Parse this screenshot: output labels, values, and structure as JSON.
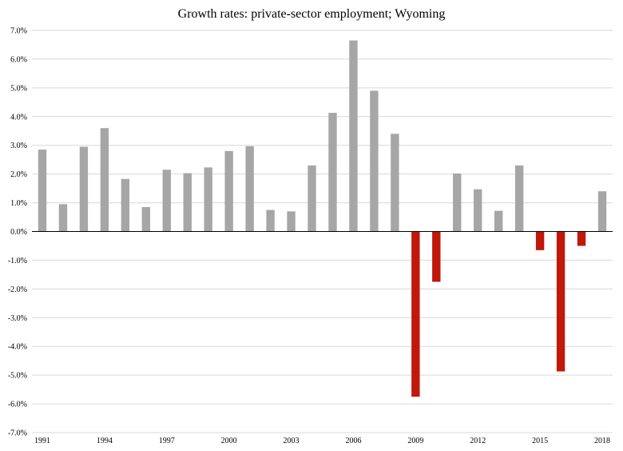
{
  "chart_data": {
    "type": "bar",
    "title": "Growth rates: private-sector employment; Wyoming",
    "xlabel": "",
    "ylabel": "",
    "ylim": [
      -7,
      7
    ],
    "y_tick_step": 1,
    "y_tick_format": "percent_1dp",
    "grid": true,
    "legend": "none",
    "colors": {
      "positive": "#a6a6a6",
      "negative": "#c0180b",
      "gridline": "#d9d9d9",
      "zero_line": "#000000"
    },
    "categories": [
      "1991",
      "1992",
      "1993",
      "1994",
      "1995",
      "1996",
      "1997",
      "1998",
      "1999",
      "2000",
      "2001",
      "2002",
      "2003",
      "2004",
      "2005",
      "2006",
      "2007",
      "2008",
      "2009",
      "2010",
      "2011",
      "2012",
      "2013",
      "2014",
      "2015",
      "2016",
      "2017",
      "2018"
    ],
    "x_tick_labels": [
      "1991",
      "1994",
      "1997",
      "2000",
      "2003",
      "2006",
      "2009",
      "2012",
      "2015",
      "2018"
    ],
    "values": [
      2.85,
      0.95,
      2.95,
      3.6,
      1.83,
      0.85,
      2.15,
      2.03,
      2.23,
      2.8,
      2.97,
      0.75,
      0.7,
      2.3,
      4.13,
      6.65,
      4.9,
      3.4,
      -5.75,
      -1.75,
      2.02,
      1.47,
      0.72,
      2.3,
      -0.65,
      -4.87,
      -0.5,
      1.4
    ]
  }
}
